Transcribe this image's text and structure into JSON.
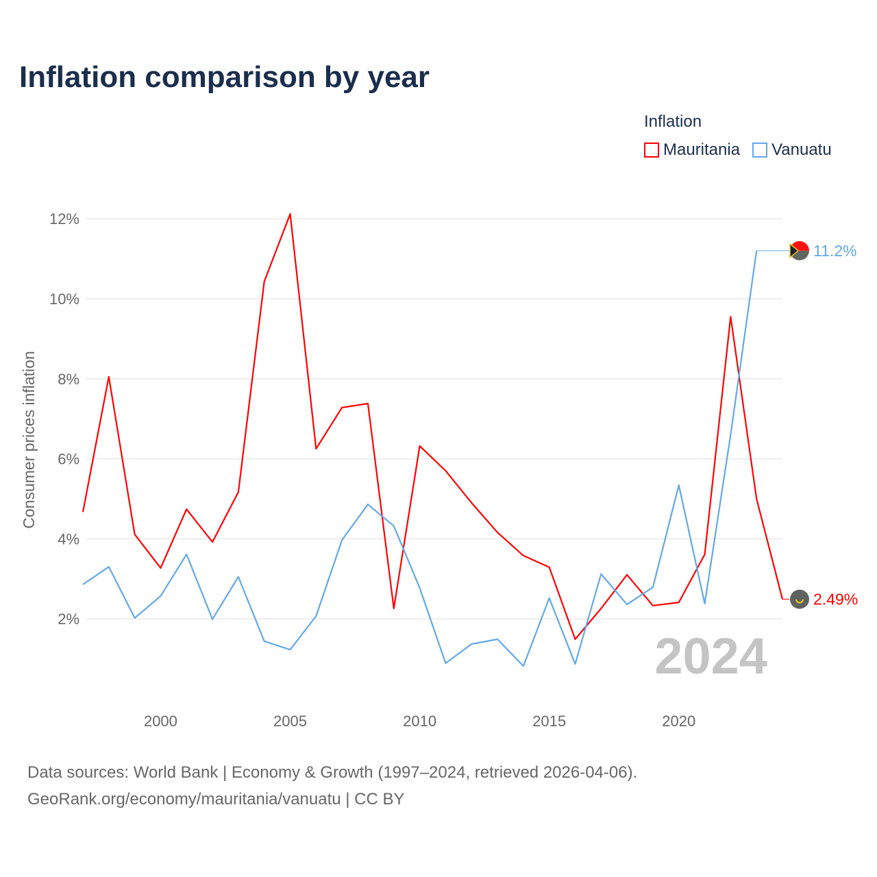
{
  "title": "Inflation comparison by year",
  "legend": {
    "title": "Inflation",
    "items": [
      "Mauritania",
      "Vanuatu"
    ]
  },
  "footer": {
    "line1": "Data sources: World Bank | Economy & Growth (1997–2024, retrieved 2026-04-06).",
    "line2": "GeoRank.org/economy/mauritania/vanuatu | CC BY"
  },
  "chart_data": {
    "type": "line",
    "title": "Inflation comparison by year",
    "xlabel": "",
    "ylabel": "Consumer prices inflation",
    "xlim": [
      1997,
      2024
    ],
    "ylim": [
      0,
      12.5
    ],
    "x_ticks": [
      2000,
      2005,
      2010,
      2015,
      2020
    ],
    "y_ticks": [
      2,
      4,
      6,
      8,
      10,
      12
    ],
    "y_tick_labels": [
      "2%",
      "4%",
      "6%",
      "8%",
      "10%",
      "12%"
    ],
    "watermark_year": "2024",
    "grid": true,
    "legend_position": "top-right",
    "series": [
      {
        "name": "Mauritania",
        "color": "#ff0000",
        "end_label": "2.49%",
        "flag": "mauritania-flag",
        "x": [
          1997,
          1998,
          1999,
          2000,
          2001,
          2002,
          2003,
          2004,
          2005,
          2006,
          2007,
          2008,
          2009,
          2010,
          2011,
          2012,
          2013,
          2014,
          2015,
          2016,
          2017,
          2018,
          2019,
          2020,
          2021,
          2022,
          2023,
          2024
        ],
        "values": [
          4.67,
          8.05,
          4.11,
          3.27,
          4.74,
          3.92,
          5.17,
          10.43,
          12.12,
          6.25,
          7.28,
          7.38,
          2.26,
          6.32,
          5.7,
          4.9,
          4.16,
          3.58,
          3.29,
          1.49,
          2.26,
          3.1,
          2.33,
          2.41,
          3.61,
          9.55,
          5.0,
          2.49
        ]
      },
      {
        "name": "Vanuatu",
        "color": "#62a8e8",
        "end_label": "11.2%",
        "flag": "vanuatu-flag",
        "x": [
          1997,
          1998,
          1999,
          2000,
          2001,
          2002,
          2003,
          2004,
          2005,
          2006,
          2007,
          2008,
          2009,
          2010,
          2011,
          2012,
          2013,
          2014,
          2015,
          2016,
          2017,
          2018,
          2019,
          2020,
          2021,
          2022,
          2023
        ],
        "values": [
          2.86,
          3.3,
          2.02,
          2.57,
          3.61,
          1.99,
          3.05,
          1.44,
          1.23,
          2.07,
          3.97,
          4.86,
          4.32,
          2.77,
          0.89,
          1.37,
          1.49,
          0.82,
          2.52,
          0.87,
          3.12,
          2.36,
          2.79,
          5.34,
          2.38,
          6.6,
          11.2
        ]
      }
    ]
  }
}
